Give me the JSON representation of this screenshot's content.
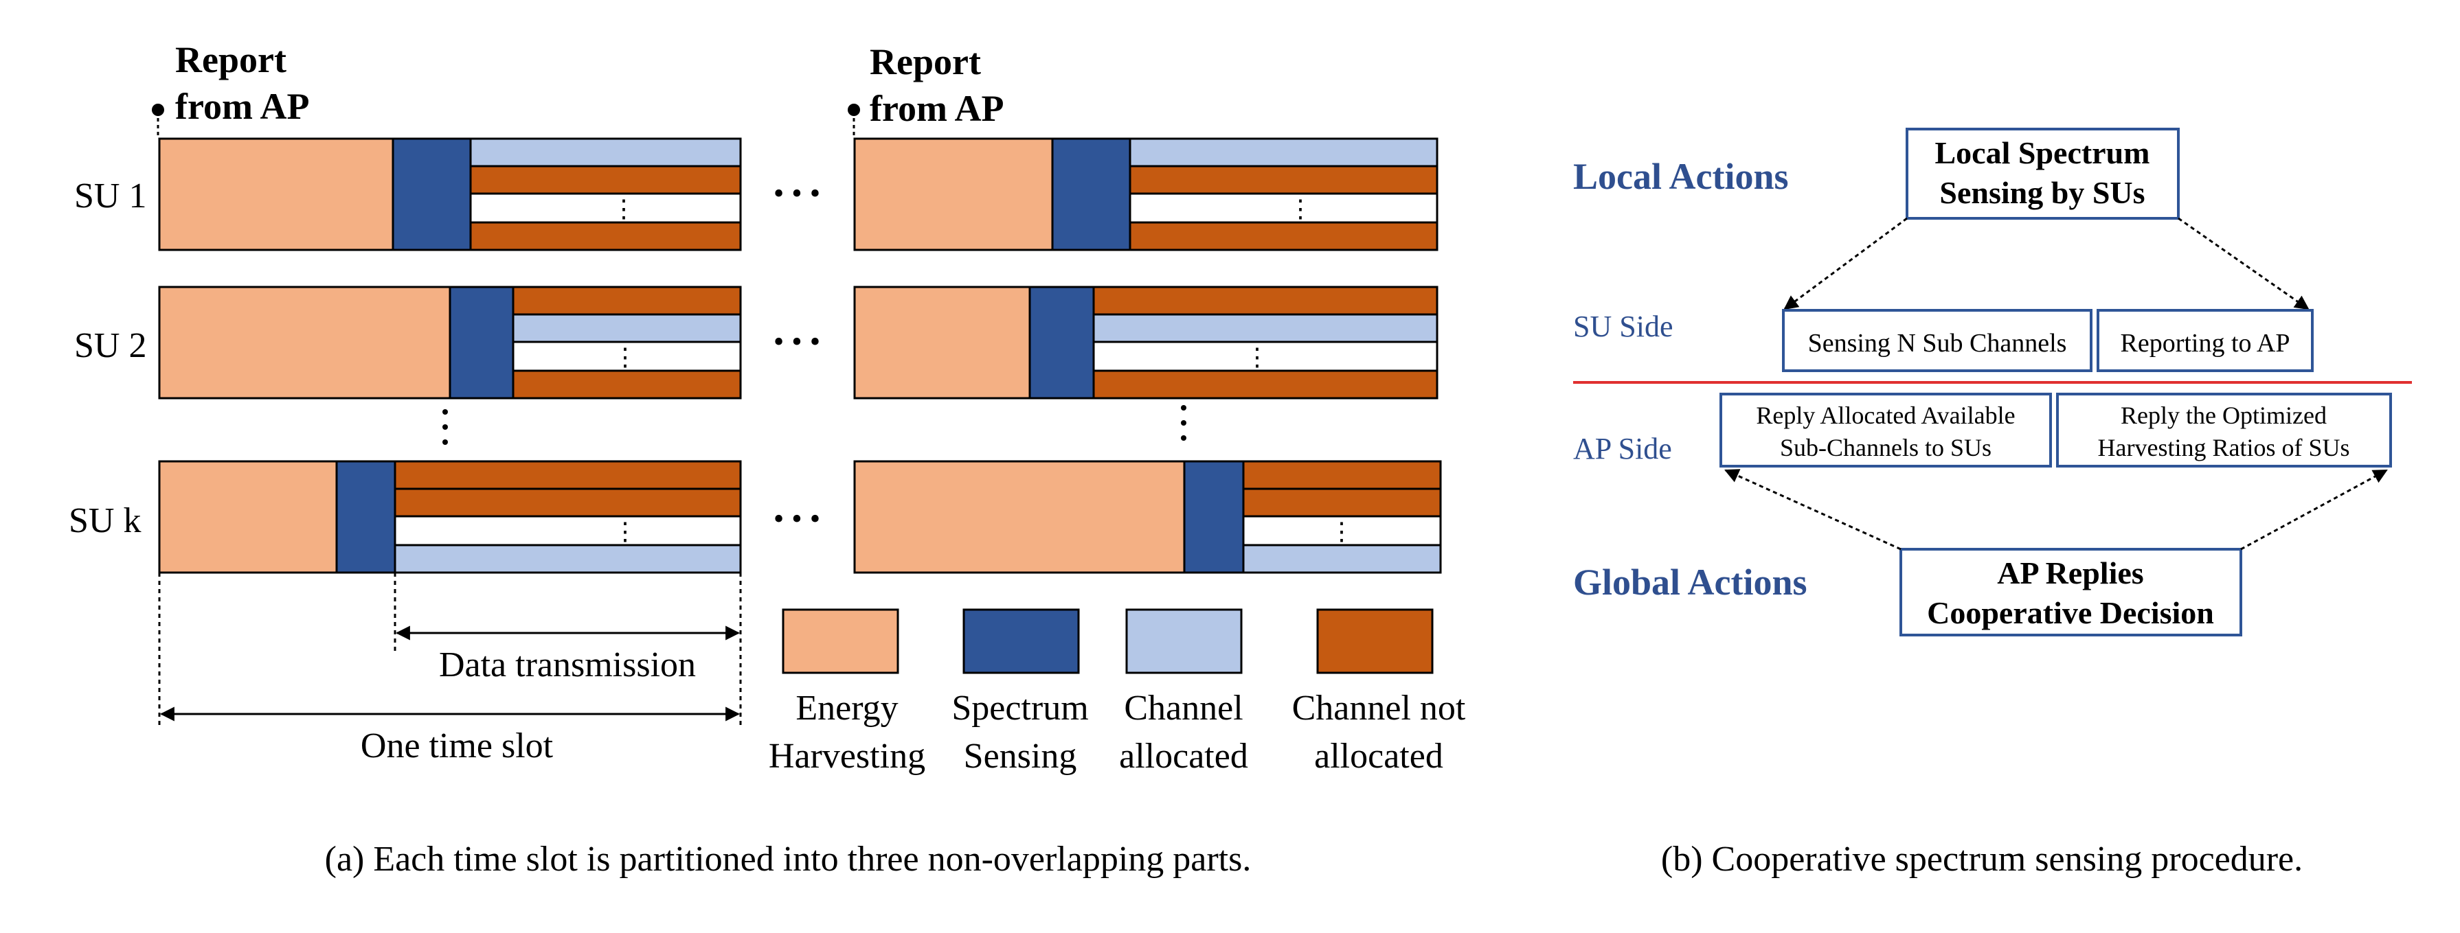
{
  "colors": {
    "energy_harvesting": "#f4b084",
    "spectrum_sensing": "#2f5597",
    "channel_allocated": "#b4c7e7",
    "channel_not_allocated": "#c55a11",
    "heading_blue": "#2f5597",
    "divider_red": "#e03030"
  },
  "diagram_a": {
    "report_label_line1": "Report",
    "report_label_line2": "from AP",
    "su_labels": [
      "SU 1",
      "SU 2",
      "SU k"
    ],
    "ellipsis": "• • •",
    "vdots": "⋮",
    "data_transmission": "Data transmission",
    "one_time_slot": "One time slot",
    "legend": [
      {
        "key": "energy_harvesting",
        "line1": "Energy",
        "line2": "Harvesting"
      },
      {
        "key": "spectrum_sensing",
        "line1": "Spectrum",
        "line2": "Sensing"
      },
      {
        "key": "channel_allocated",
        "line1": "Channel",
        "line2": "allocated"
      },
      {
        "key": "channel_not_allocated",
        "line1": "Channel not",
        "line2": "allocated"
      }
    ],
    "caption": "(a) Each time slot is partitioned into three non-overlapping parts."
  },
  "diagram_b": {
    "local_actions": "Local Actions",
    "global_actions": "Global Actions",
    "su_side": "SU Side",
    "ap_side": "AP Side",
    "local_box_line1": "Local Spectrum",
    "local_box_line2": "Sensing by SUs",
    "sensing_box": "Sensing N Sub Channels",
    "reporting_box": "Reporting to AP",
    "reply_alloc_line1": "Reply Allocated Available",
    "reply_alloc_line2": "Sub-Channels to SUs",
    "reply_opt_line1": "Reply the Optimized",
    "reply_opt_line2": "Harvesting Ratios of SUs",
    "global_box_line1": "AP Replies",
    "global_box_line2": "Cooperative Decision",
    "caption": "(b) Cooperative spectrum sensing procedure."
  }
}
